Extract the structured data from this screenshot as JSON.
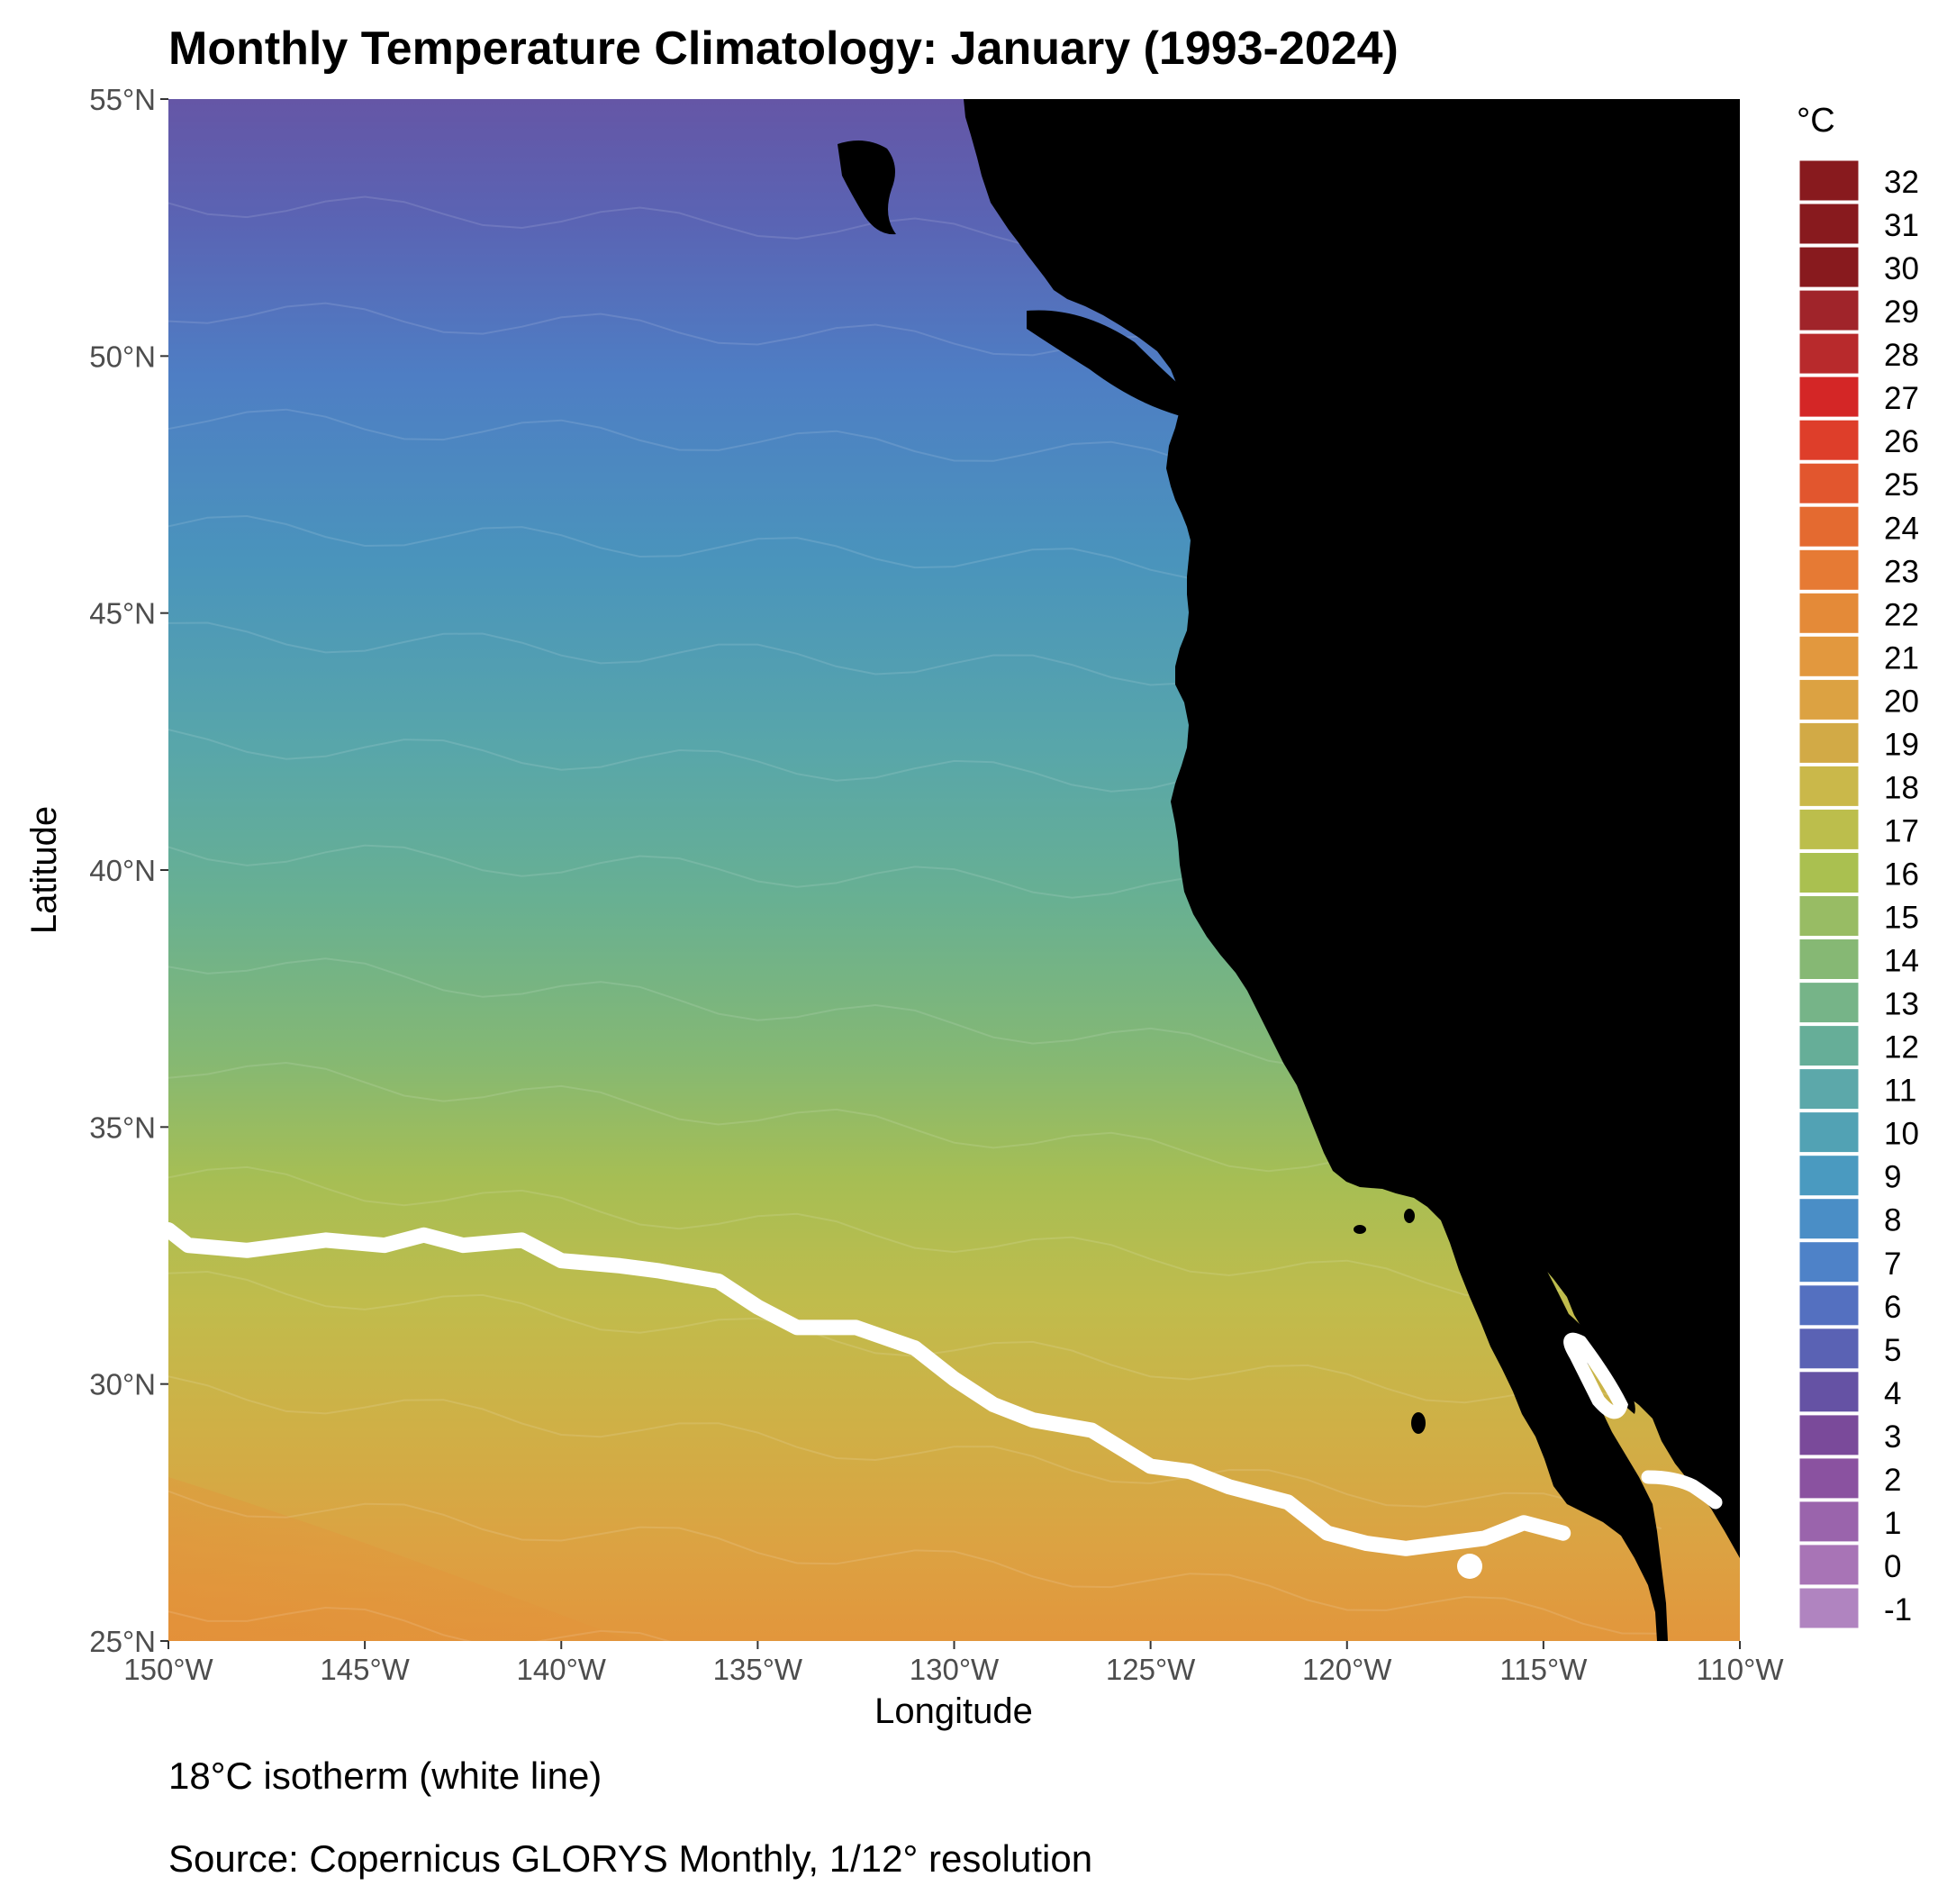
{
  "title": "Monthly Temperature Climatology: January (1993-2024)",
  "caption_line1": "18°C isotherm (white line)",
  "caption_line2": "Source: Copernicus GLORYS Monthly, 1/12° resolution",
  "colors": {
    "land": "#000000",
    "isotherm": "#ffffff",
    "legend": [
      "#b084c0",
      "#a874b6",
      "#9a64ac",
      "#8a52a0",
      "#7a4a9a",
      "#6552a4",
      "#5a62b4",
      "#5470c0",
      "#4e82c8",
      "#4a8ec6",
      "#4a9ac0",
      "#52a2b4",
      "#5ca8aa",
      "#66ae98",
      "#76b488",
      "#86b874",
      "#98bc64",
      "#aac050",
      "#bcbe4c",
      "#cab84a",
      "#d2aa46",
      "#dca242",
      "#e2983e",
      "#e48a38",
      "#e67a34",
      "#e46a30",
      "#e2562e",
      "#de3e2a",
      "#d42626",
      "#b82a2c",
      "#a0242a",
      "#881a1e"
    ]
  },
  "chart_data": {
    "type": "heatmap",
    "title": "Monthly Temperature Climatology: January (1993-2024)",
    "xlabel": "Longitude",
    "ylabel": "Latitude",
    "xlim": [
      -150,
      -110
    ],
    "ylim": [
      25,
      55
    ],
    "x_ticks": [
      {
        "value": -150,
        "label": "150°W"
      },
      {
        "value": -145,
        "label": "145°W"
      },
      {
        "value": -140,
        "label": "140°W"
      },
      {
        "value": -135,
        "label": "135°W"
      },
      {
        "value": -130,
        "label": "130°W"
      },
      {
        "value": -125,
        "label": "125°W"
      },
      {
        "value": -120,
        "label": "120°W"
      },
      {
        "value": -115,
        "label": "115°W"
      },
      {
        "value": -110,
        "label": "110°W"
      }
    ],
    "y_ticks": [
      {
        "value": 25,
        "label": "25°N"
      },
      {
        "value": 30,
        "label": "30°N"
      },
      {
        "value": 35,
        "label": "35°N"
      },
      {
        "value": 40,
        "label": "40°N"
      },
      {
        "value": 45,
        "label": "45°N"
      },
      {
        "value": 50,
        "label": "50°N"
      },
      {
        "value": 55,
        "label": "55°N"
      }
    ],
    "legend_title": "°C",
    "legend_values": [
      -1,
      0,
      1,
      2,
      3,
      4,
      5,
      6,
      7,
      8,
      9,
      10,
      11,
      12,
      13,
      14,
      15,
      16,
      17,
      18,
      19,
      20,
      21,
      22,
      23,
      24,
      25,
      26,
      27,
      28,
      29,
      30,
      31,
      32
    ],
    "legend_placement": "right",
    "isotherm_celsius": 18,
    "isotherm_path": [
      {
        "lon": -150,
        "lat": 33.0
      },
      {
        "lon": -149.5,
        "lat": 32.7
      },
      {
        "lon": -148,
        "lat": 32.6
      },
      {
        "lon": -146,
        "lat": 32.8
      },
      {
        "lon": -144.5,
        "lat": 32.7
      },
      {
        "lon": -143.5,
        "lat": 32.9
      },
      {
        "lon": -142.5,
        "lat": 32.7
      },
      {
        "lon": -141,
        "lat": 32.8
      },
      {
        "lon": -140,
        "lat": 32.4
      },
      {
        "lon": -138.5,
        "lat": 32.3
      },
      {
        "lon": -137.5,
        "lat": 32.2
      },
      {
        "lon": -136,
        "lat": 32.0
      },
      {
        "lon": -135,
        "lat": 31.5
      },
      {
        "lon": -134,
        "lat": 31.1
      },
      {
        "lon": -132.5,
        "lat": 31.1
      },
      {
        "lon": -131,
        "lat": 30.7
      },
      {
        "lon": -130,
        "lat": 30.1
      },
      {
        "lon": -129,
        "lat": 29.6
      },
      {
        "lon": -128,
        "lat": 29.3
      },
      {
        "lon": -126.5,
        "lat": 29.1
      },
      {
        "lon": -125,
        "lat": 28.4
      },
      {
        "lon": -124,
        "lat": 28.3
      },
      {
        "lon": -123,
        "lat": 28.0
      },
      {
        "lon": -121.5,
        "lat": 27.7
      },
      {
        "lon": -120.5,
        "lat": 27.1
      },
      {
        "lon": -119.5,
        "lat": 26.9
      },
      {
        "lon": -118.5,
        "lat": 26.8
      },
      {
        "lon": -117.5,
        "lat": 26.9
      },
      {
        "lon": -116.5,
        "lat": 27.0
      },
      {
        "lon": -115.5,
        "lat": 27.3
      },
      {
        "lon": -114.5,
        "lat": 27.1
      }
    ]
  }
}
